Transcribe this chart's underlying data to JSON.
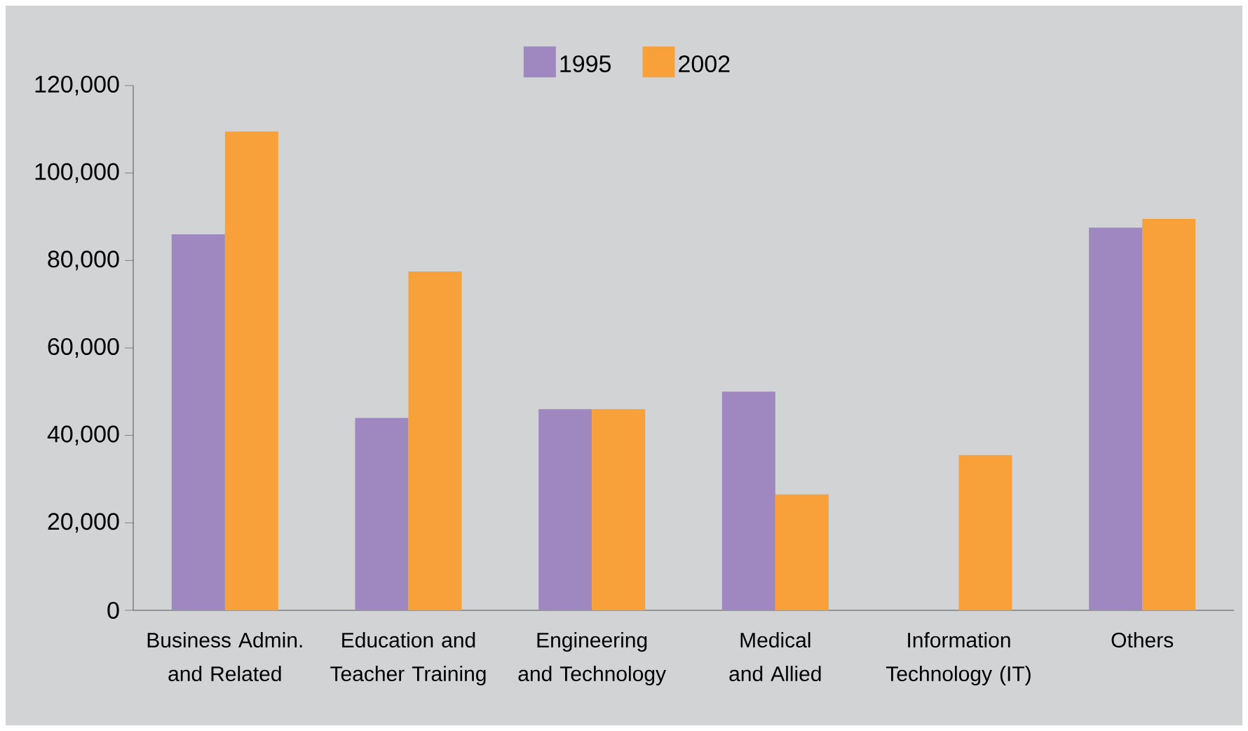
{
  "chart_data": {
    "type": "bar",
    "categories": [
      "Business Admin. and Related",
      "Education and Teacher Training",
      "Engineering and Technology",
      "Medical and Allied",
      "Information Technology (IT)",
      "Others"
    ],
    "series": [
      {
        "name": "1995",
        "color": "#9e88bf",
        "values": [
          86000,
          44000,
          46000,
          50000,
          null,
          87500
        ]
      },
      {
        "name": "2002",
        "color": "#f8a13b",
        "values": [
          109500,
          77500,
          46000,
          26500,
          35500,
          89500
        ]
      }
    ],
    "ylim": [
      0,
      120000
    ],
    "yticks": [
      {
        "value": 0,
        "label": "0"
      },
      {
        "value": 20000,
        "label": "20,000"
      },
      {
        "value": 40000,
        "label": "40,000"
      },
      {
        "value": 60000,
        "label": "60,000"
      },
      {
        "value": 80000,
        "label": "80,000"
      },
      {
        "value": 100000,
        "label": "100,000"
      },
      {
        "value": 120000,
        "label": "120,000"
      }
    ],
    "grid": false,
    "legend": "top"
  }
}
